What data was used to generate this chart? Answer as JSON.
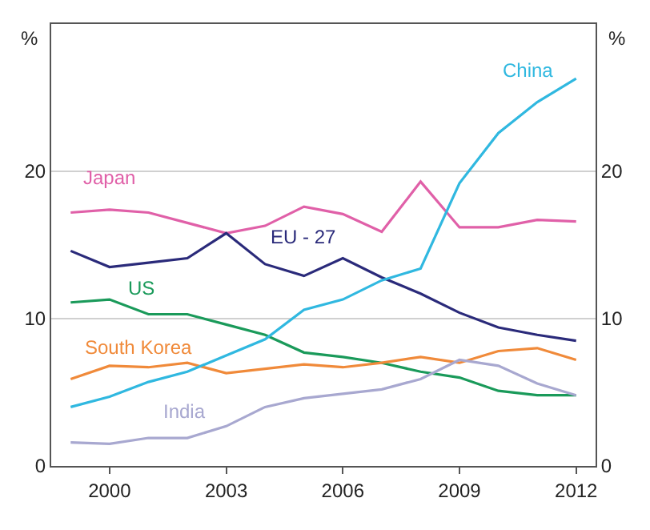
{
  "chart_data": {
    "type": "line",
    "ylabel": "%",
    "y2label": "%",
    "x": [
      1999,
      2000,
      2001,
      2002,
      2003,
      2004,
      2005,
      2006,
      2007,
      2008,
      2009,
      2010,
      2011,
      2012
    ],
    "xlim": [
      1998.5,
      2012.5
    ],
    "xticks": [
      2000,
      2003,
      2006,
      2009,
      2012
    ],
    "ylim": [
      0,
      30
    ],
    "yticks": [
      0,
      10,
      20
    ],
    "y2lim": [
      0,
      30
    ],
    "y2ticks": [
      0,
      10,
      20
    ],
    "grid": "y",
    "legend": false,
    "marker": "none",
    "line_style": "solid",
    "series": [
      {
        "name": "Japan",
        "color": "#e060a8",
        "values": [
          17.2,
          17.4,
          17.2,
          16.5,
          15.8,
          16.3,
          17.6,
          17.1,
          15.9,
          19.3,
          16.2,
          16.2,
          16.7,
          16.6
        ]
      },
      {
        "name": "EU - 27",
        "color": "#2a2a7a",
        "values": [
          14.6,
          13.5,
          13.8,
          14.1,
          15.8,
          13.7,
          12.9,
          14.1,
          12.8,
          11.7,
          10.4,
          9.4,
          8.9,
          8.5
        ]
      },
      {
        "name": "US",
        "color": "#1a9a5a",
        "values": [
          11.1,
          11.3,
          10.3,
          10.3,
          9.6,
          8.9,
          7.7,
          7.4,
          7.0,
          6.4,
          6.0,
          5.1,
          4.8,
          4.8
        ]
      },
      {
        "name": "South Korea",
        "color": "#f08a3a",
        "values": [
          5.9,
          6.8,
          6.7,
          7.0,
          6.3,
          6.6,
          6.9,
          6.7,
          7.0,
          7.4,
          7.0,
          7.8,
          8.0,
          7.2
        ]
      },
      {
        "name": "China",
        "color": "#30b8e0",
        "values": [
          4.0,
          4.7,
          5.7,
          6.4,
          7.5,
          8.6,
          10.6,
          11.3,
          12.6,
          13.4,
          19.2,
          22.6,
          24.7,
          26.3
        ]
      },
      {
        "name": "India",
        "color": "#a8a8d0",
        "values": [
          1.6,
          1.5,
          1.9,
          1.9,
          2.7,
          4.0,
          4.6,
          4.9,
          5.2,
          5.9,
          7.2,
          6.8,
          5.6,
          4.8
        ]
      }
    ]
  }
}
